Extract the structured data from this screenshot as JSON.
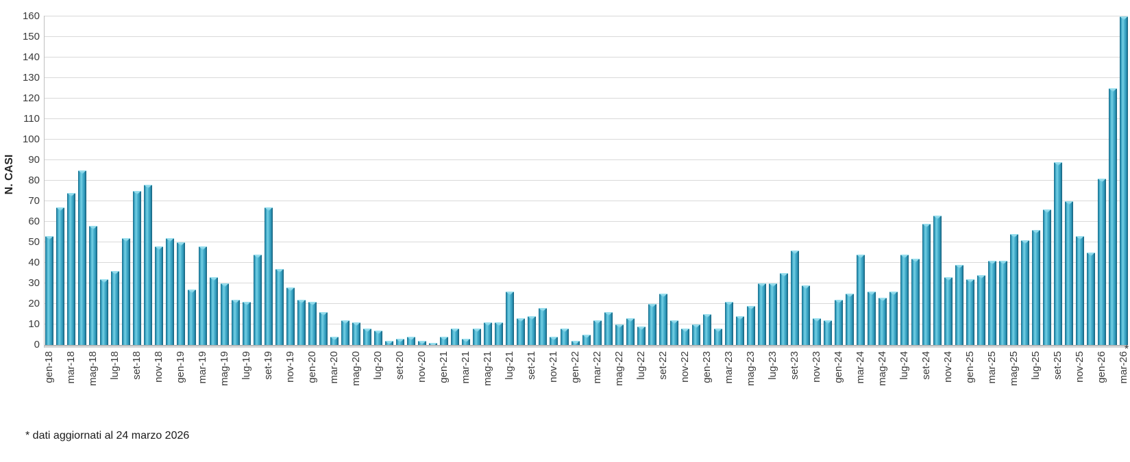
{
  "chart_data": {
    "type": "bar",
    "title": "",
    "ylabel": "N. CASI",
    "xlabel": "",
    "ylim": [
      0,
      160
    ],
    "yticks": [
      0,
      10,
      20,
      30,
      40,
      50,
      60,
      70,
      80,
      90,
      100,
      110,
      120,
      130,
      140,
      150,
      160
    ],
    "grid": "horizontal",
    "legend_position": "none",
    "bar_color": "#3aa6c6",
    "bar_edge_color": "#14627e",
    "bar_highlight_color": "#74cfe4",
    "gridline_color": "#d9d9d9",
    "categories": [
      "gen-18",
      "feb-18",
      "mar-18",
      "apr-18",
      "mag-18",
      "giu-18",
      "lug-18",
      "ago-18",
      "set-18",
      "ott-18",
      "nov-18",
      "dic-18",
      "gen-19",
      "feb-19",
      "mar-19",
      "apr-19",
      "mag-19",
      "giu-19",
      "lug-19",
      "ago-19",
      "set-19",
      "ott-19",
      "nov-19",
      "dic-19",
      "gen-20",
      "feb-20",
      "mar-20",
      "apr-20",
      "mag-20",
      "giu-20",
      "lug-20",
      "ago-20",
      "set-20",
      "ott-20",
      "nov-20",
      "dic-20",
      "gen-21",
      "feb-21",
      "mar-21",
      "apr-21",
      "mag-21",
      "giu-21",
      "lug-21",
      "ago-21",
      "set-21",
      "ott-21",
      "nov-21",
      "dic-21",
      "gen-22",
      "feb-22",
      "mar-22",
      "apr-22",
      "mag-22",
      "giu-22",
      "lug-22",
      "ago-22",
      "set-22",
      "ott-22",
      "nov-22",
      "dic-22",
      "gen-23",
      "feb-23",
      "mar-23",
      "apr-23",
      "mag-23",
      "giu-23",
      "lug-23",
      "ago-23",
      "set-23",
      "ott-23",
      "nov-23",
      "dic-23",
      "gen-24",
      "feb-24",
      "mar-24",
      "apr-24",
      "mag-24",
      "giu-24",
      "lug-24",
      "ago-24",
      "set-24",
      "ott-24",
      "nov-24",
      "dic-24",
      "gen-25",
      "feb-25",
      "mar-25",
      "apr-25",
      "mag-25",
      "giu-25",
      "lug-25",
      "ago-25",
      "set-25",
      "ott-25",
      "nov-25",
      "dic-25",
      "gen-26",
      "feb-26",
      "mar-26"
    ],
    "values": [
      53,
      67,
      74,
      85,
      58,
      32,
      36,
      52,
      75,
      78,
      48,
      52,
      50,
      27,
      48,
      33,
      30,
      22,
      21,
      44,
      67,
      37,
      28,
      22,
      21,
      16,
      4,
      12,
      11,
      8,
      7,
      2,
      3,
      4,
      2,
      1,
      4,
      8,
      3,
      8,
      11,
      11,
      26,
      13,
      14,
      18,
      4,
      8,
      2,
      5,
      12,
      16,
      10,
      13,
      9,
      20,
      25,
      12,
      8,
      10,
      15,
      8,
      21,
      14,
      19,
      30,
      30,
      35,
      46,
      29,
      13,
      12,
      22,
      25,
      44,
      26,
      23,
      26,
      44,
      42,
      59,
      63,
      33,
      39,
      32,
      34,
      41,
      41,
      54,
      51,
      56,
      66,
      89,
      70,
      53,
      45,
      81,
      125,
      160
    ],
    "xtick_every": 2,
    "axis_end_marker": "*",
    "footnote": "* dati aggiornati al 24 marzo 2026"
  }
}
